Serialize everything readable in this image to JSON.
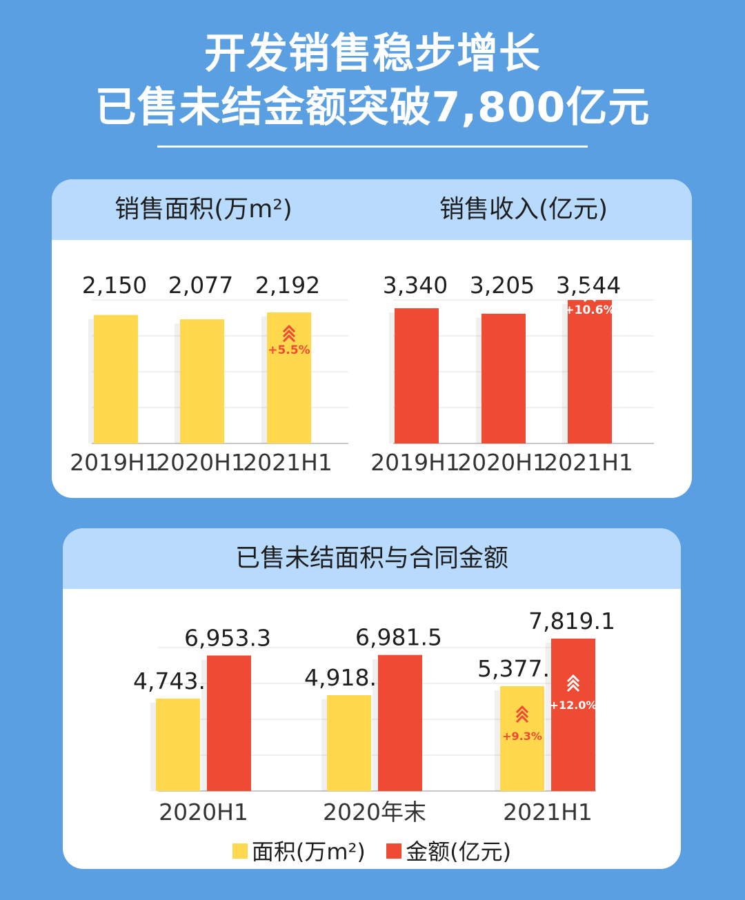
{
  "headline": {
    "line1": "开发销售稳步增长",
    "line2": "已售未结金额突破7,800亿元"
  },
  "colors": {
    "background": "#5b9fe3",
    "header_band": "#b8dafd",
    "area_bar": "#ffd84d",
    "amount_bar": "#ef4b34",
    "growth_on_yellow": "#ef4b34",
    "growth_on_red": "#ffffff"
  },
  "panels": {
    "area": {
      "title": "销售面积(万m²)"
    },
    "revenue": {
      "title": "销售收入(亿元)"
    },
    "unsettled": {
      "title": "已售未结面积与合同金额"
    }
  },
  "legend": {
    "area": "面积(万m²)",
    "amount": "金额(亿元)"
  },
  "chart_data": [
    {
      "type": "bar",
      "title": "销售面积(万m²)",
      "categories": [
        "2019H1",
        "2020H1",
        "2021H1"
      ],
      "values": [
        2150,
        2077,
        2192
      ],
      "value_labels": [
        "2,150",
        "2,077",
        "2,192"
      ],
      "growth_label": "+5.5%",
      "ylim": [
        0,
        2400
      ],
      "grid": true
    },
    {
      "type": "bar",
      "title": "销售收入(亿元)",
      "categories": [
        "2019H1",
        "2020H1",
        "2021H1"
      ],
      "values": [
        3340,
        3205,
        3544
      ],
      "value_labels": [
        "3,340",
        "3,205",
        "3,544"
      ],
      "growth_label": "+10.6%",
      "ylim": [
        0,
        3544
      ],
      "grid": true
    },
    {
      "type": "bar",
      "title": "已售未结面积与合同金额",
      "categories": [
        "2020H1",
        "2020年末",
        "2021H1"
      ],
      "series": [
        {
          "name": "面积(万m²)",
          "values": [
            4743.2,
            4918.6,
            5377.7
          ],
          "value_labels": [
            "4,743.2",
            "4,918.6",
            "5,377.7"
          ],
          "growth_label": "+9.3%"
        },
        {
          "name": "金额(亿元)",
          "values": [
            6953.3,
            6981.5,
            7819.1
          ],
          "value_labels": [
            "6,953.3",
            "6,981.5",
            "7,819.1"
          ],
          "growth_label": "+12.0%"
        }
      ],
      "ylim": [
        0,
        7819.1
      ],
      "grid": true,
      "legend": "bottom-center"
    }
  ]
}
